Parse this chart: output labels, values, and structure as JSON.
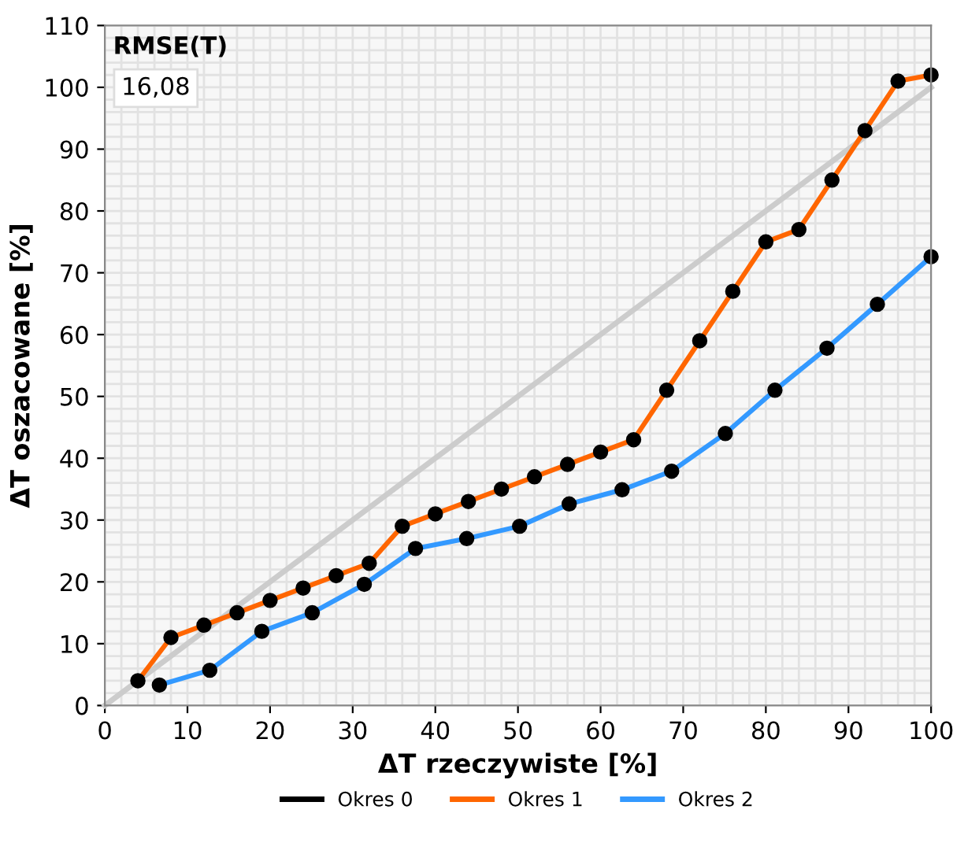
{
  "chart_data": {
    "type": "line",
    "xlabel": "ΔT rzeczywiste [%]",
    "ylabel": "ΔT oszacowane [%]",
    "annotations": [
      "RMSE(T)",
      "16,08"
    ],
    "series": [
      {
        "type": "line",
        "color": "#cccccc",
        "x": [
          0,
          100
        ],
        "values": [
          0,
          100
        ],
        "marker": "none"
      },
      {
        "name": "Okres 0",
        "color": "#000000",
        "marker": "circle"
      },
      {
        "name": "Okres 1",
        "color": "#ff6600",
        "marker": "circle",
        "x": [
          4,
          8,
          12,
          16,
          20,
          24,
          28,
          32,
          36,
          40,
          44,
          48,
          52,
          56,
          60,
          64,
          68,
          72,
          76,
          80,
          84,
          88,
          92,
          96,
          100
        ],
        "values": [
          4,
          11,
          13,
          15,
          17,
          19,
          21,
          23,
          29,
          31,
          33,
          35,
          37,
          39,
          41,
          43,
          51,
          59,
          67,
          75,
          77,
          85,
          93,
          101,
          102
        ]
      },
      {
        "name": "Okres 2",
        "color": "#3399ff",
        "marker": "circle",
        "x": [
          6.6,
          12.7,
          19,
          25.1,
          31.4,
          37.6,
          43.8,
          50.2,
          56.2,
          62.6,
          68.6,
          75.1,
          81.1,
          87.4,
          93.5,
          100
        ],
        "values": [
          3.3,
          5.7,
          12,
          15,
          19.6,
          25.4,
          27,
          29,
          32.6,
          34.9,
          37.9,
          44,
          51,
          57.8,
          64.9,
          72.6
        ]
      }
    ],
    "xlim": [
      0,
      100
    ],
    "xticks": [
      0,
      10,
      20,
      30,
      40,
      50,
      60,
      70,
      80,
      90,
      100
    ],
    "ylim": [
      0,
      110
    ],
    "yticks": [
      0,
      10,
      20,
      30,
      40,
      50,
      60,
      70,
      80,
      90,
      100,
      110
    ],
    "grid": true,
    "legend": "bottom",
    "line_style": "solid"
  }
}
